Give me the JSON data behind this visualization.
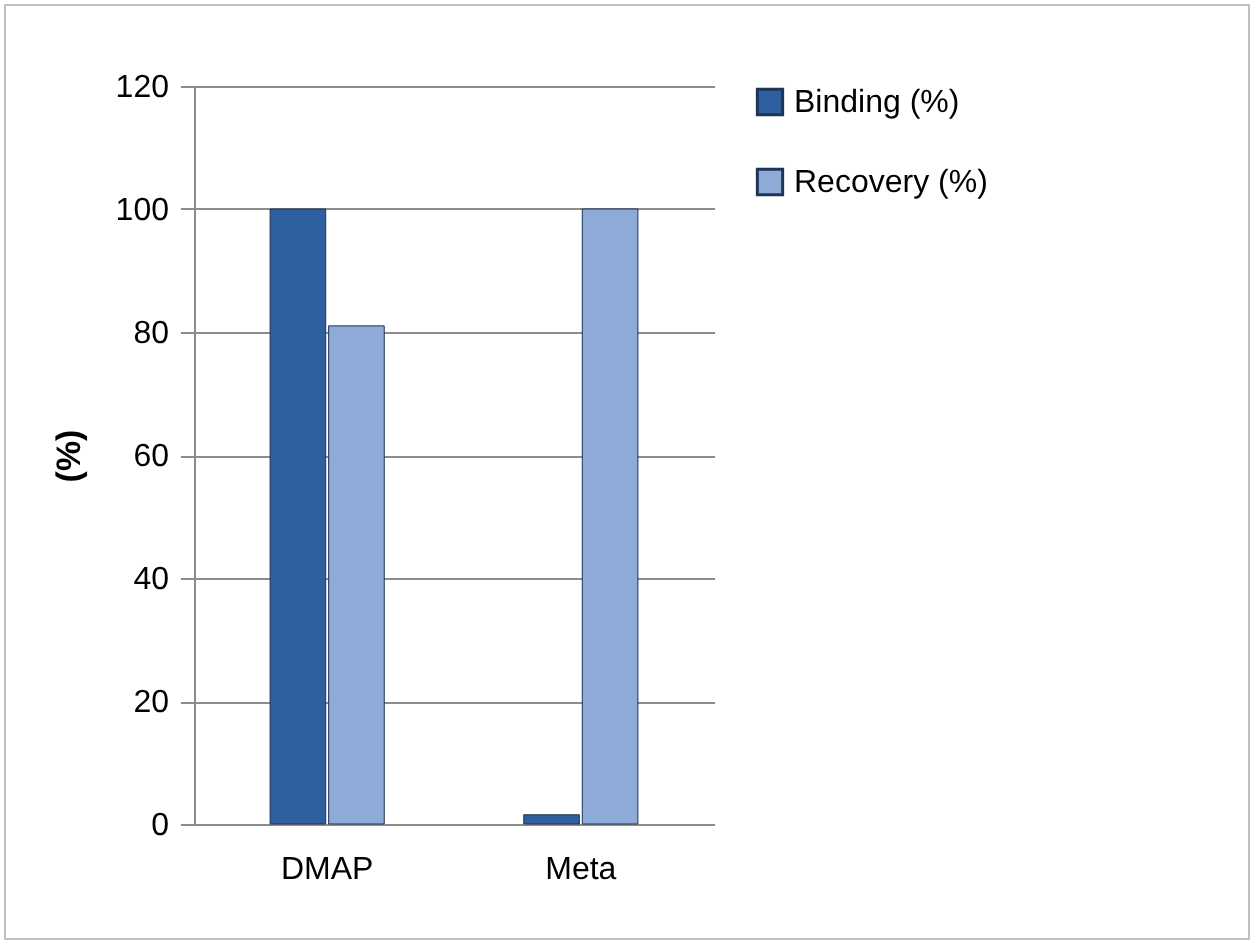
{
  "chart_data": {
    "type": "bar",
    "ylabel": "(%)",
    "categories": [
      "DMAP",
      "Meta"
    ],
    "series": [
      {
        "name": "Binding (%)",
        "color": "#2e5f9e",
        "values": [
          100,
          1.5
        ]
      },
      {
        "name": "Recovery (%)",
        "color": "#8eaad6",
        "values": [
          81,
          100
        ]
      }
    ],
    "ylim": [
      0,
      120
    ],
    "yticks": [
      0,
      20,
      40,
      60,
      80,
      100,
      120
    ],
    "grid": "y",
    "legend": "right"
  }
}
